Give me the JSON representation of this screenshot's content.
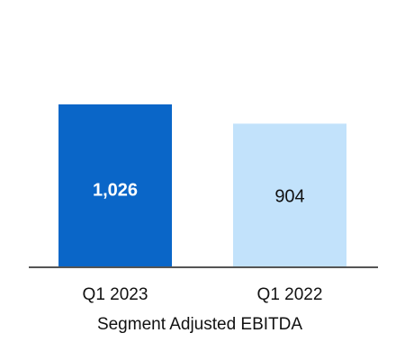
{
  "chart_data": {
    "type": "bar",
    "categories": [
      "Q1 2023",
      "Q1 2022"
    ],
    "values": [
      1026,
      904
    ],
    "value_labels": [
      "1,026",
      "904"
    ],
    "xlabel": "Segment Adjusted EBITDA",
    "ylabel": "",
    "ylim": [
      0,
      1026
    ],
    "grid": false,
    "legend": "none",
    "colors": [
      "#0a66c8",
      "#c2e2fb"
    ],
    "label_colors": [
      "#ffffff",
      "#111111"
    ],
    "axis_color": "#555555"
  }
}
